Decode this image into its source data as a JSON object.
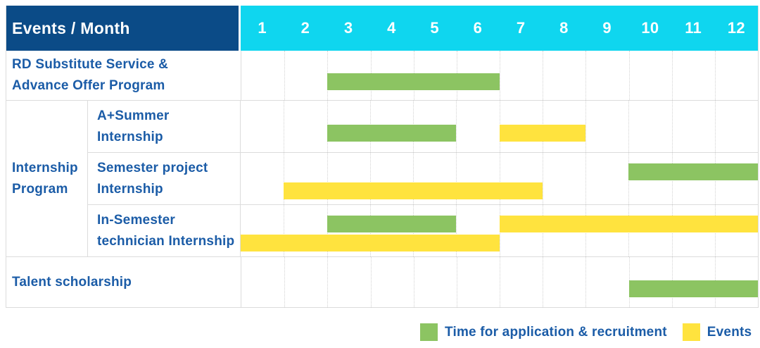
{
  "header": {
    "title": "Events / Month"
  },
  "colors": {
    "header_navy": "#0B4B87",
    "header_cyan": "#0FD6EF",
    "bar_green": "#8CC462",
    "bar_yellow": "#FFE33E",
    "text_blue": "#1B5CA7",
    "grid_line": "#DCDCDC"
  },
  "legend": {
    "recruitment_label": "Time for application & recruitment",
    "events_label": "Events"
  },
  "chart_data": {
    "type": "gantt",
    "title": "Events / Month",
    "x_axis": {
      "label": "Month",
      "ticks": [
        "1",
        "2",
        "3",
        "4",
        "5",
        "6",
        "7",
        "8",
        "9",
        "10",
        "11",
        "12"
      ],
      "range": [
        1,
        12
      ]
    },
    "legend": [
      {
        "series": "recruitment",
        "label": "Time for application & recruitment",
        "color": "#8CC462"
      },
      {
        "series": "events",
        "label": "Events",
        "color": "#FFE33E"
      }
    ],
    "group_label_lines": [
      "Internship",
      "Program"
    ],
    "rows": [
      {
        "id": "rd-substitute",
        "group": "",
        "label_lines": [
          "RD Substitute Service &",
          "Advance Offer Program"
        ],
        "bars": [
          {
            "series": "recruitment",
            "start_month": 3,
            "end_month": 6,
            "lane": "single"
          }
        ]
      },
      {
        "id": "a-plus-summer",
        "group": "Internship Program",
        "label_lines": [
          "A+Summer",
          "Internship"
        ],
        "bars": [
          {
            "series": "recruitment",
            "start_month": 3,
            "end_month": 5,
            "lane": "single"
          },
          {
            "series": "events",
            "start_month": 7,
            "end_month": 8,
            "lane": "single"
          }
        ]
      },
      {
        "id": "semester-project",
        "group": "Internship Program",
        "label_lines": [
          "Semester project",
          "Internship"
        ],
        "bars": [
          {
            "series": "recruitment",
            "start_month": 10,
            "end_month": 12,
            "lane": "upper"
          },
          {
            "series": "events",
            "start_month": 2,
            "end_month": 7,
            "lane": "lower"
          }
        ]
      },
      {
        "id": "in-semester-technician",
        "group": "Internship Program",
        "label_lines": [
          "In-Semester",
          "technician Internship"
        ],
        "bars": [
          {
            "series": "recruitment",
            "start_month": 3,
            "end_month": 5,
            "lane": "upper"
          },
          {
            "series": "events",
            "start_month": 7,
            "end_month": 12,
            "lane": "upper"
          },
          {
            "series": "events",
            "start_month": 1,
            "end_month": 6,
            "lane": "lower"
          }
        ]
      },
      {
        "id": "talent-scholarship",
        "group": "",
        "label_lines": [
          "Talent scholarship"
        ],
        "bars": [
          {
            "series": "recruitment",
            "start_month": 10,
            "end_month": 12,
            "lane": "single"
          }
        ]
      }
    ]
  }
}
